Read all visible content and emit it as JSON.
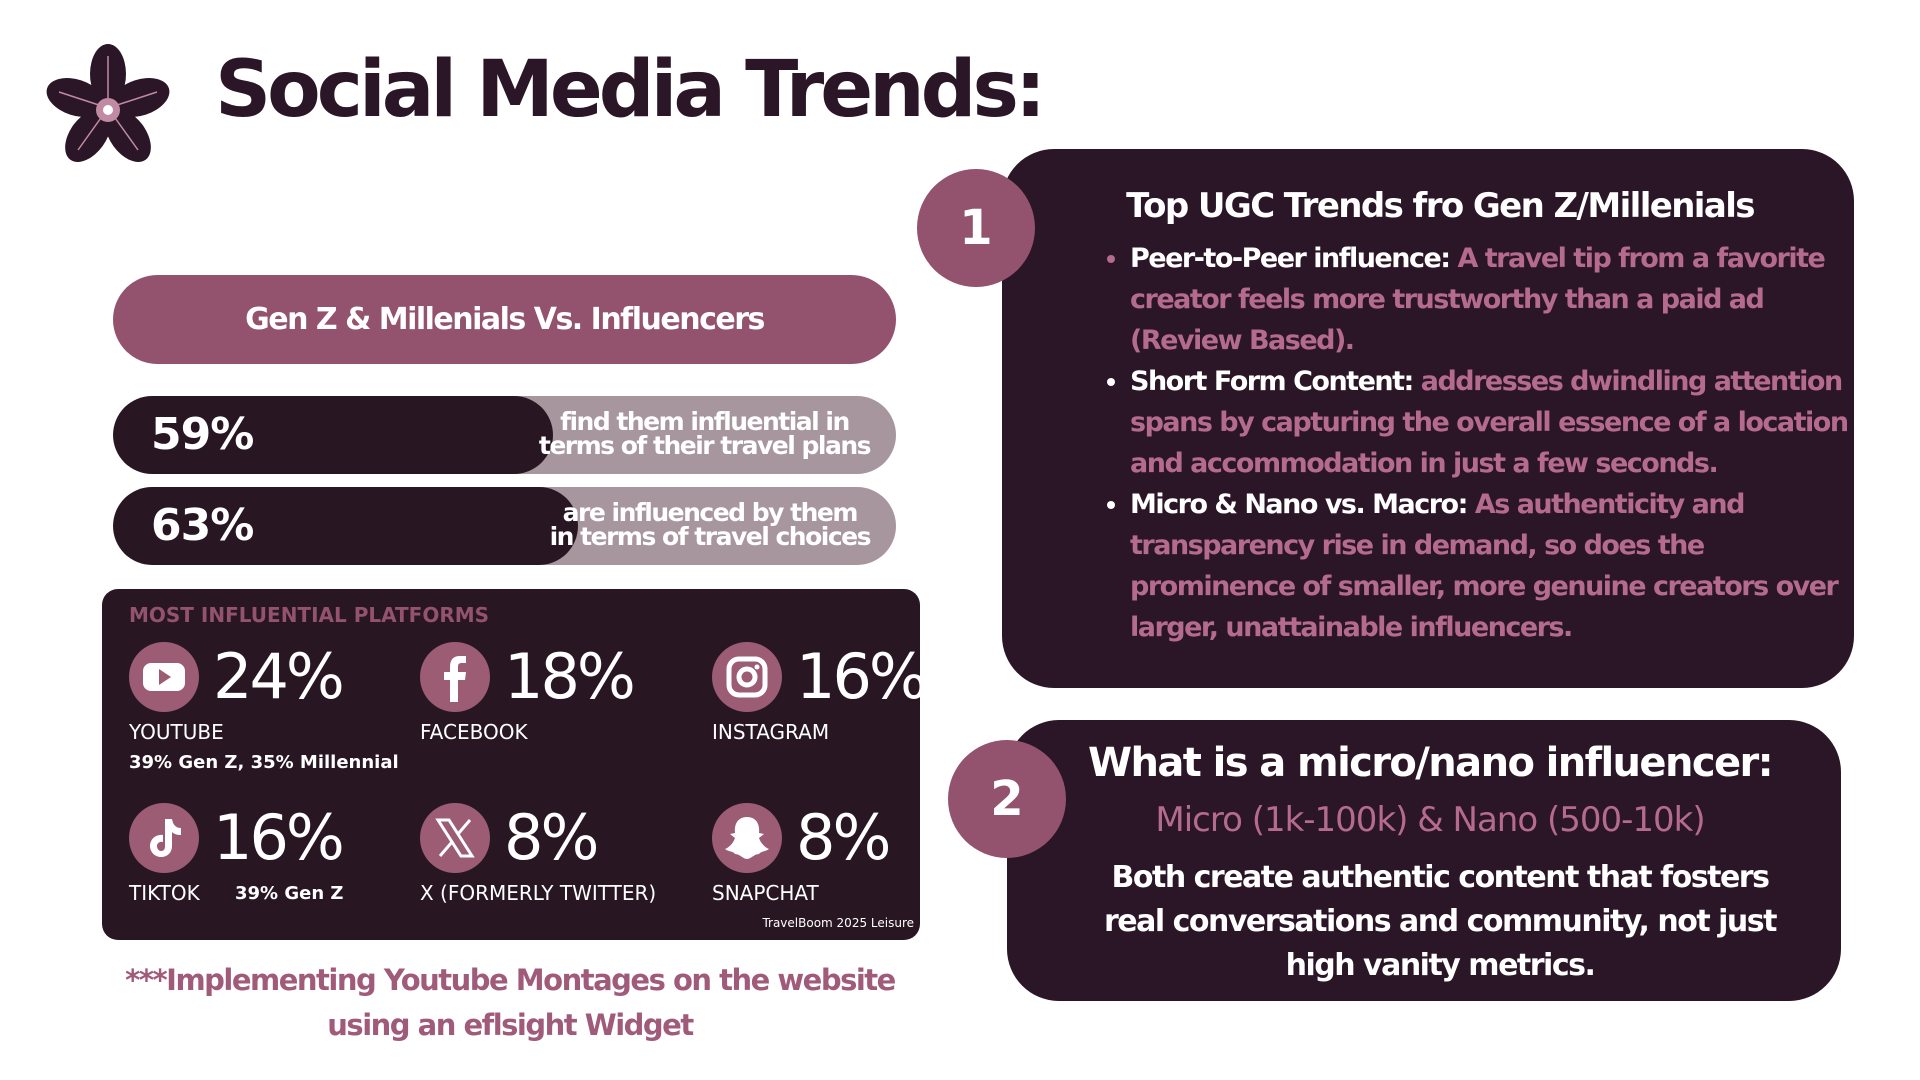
{
  "header": {
    "title": "Social Media Trends:"
  },
  "left": {
    "banner": "Gen Z & Millenials Vs. Influencers",
    "stats": [
      {
        "value": "59%",
        "text": [
          "find them influential in",
          "terms of their travel plans"
        ]
      },
      {
        "value": "63%",
        "text": [
          "are influenced by them",
          "in terms of travel choices"
        ]
      }
    ]
  },
  "platforms": {
    "heading": "MOST INFLUENTIAL PLATFORMS",
    "items": [
      {
        "value": "24%",
        "name": "YOUTUBE",
        "note": "39% Gen Z, 35% Millennial"
      },
      {
        "value": "18%",
        "name": "FACEBOOK"
      },
      {
        "value": "16%",
        "name": "INSTAGRAM"
      },
      {
        "value": "16%",
        "name": "TIKTOK",
        "note": "39% Gen Z"
      },
      {
        "value": "8%",
        "name": "X (FORMERLY TWITTER)"
      },
      {
        "value": "8%",
        "name": "SNAPCHAT"
      }
    ],
    "source": "TravelBoom 2025 Leisure"
  },
  "footnote": [
    "***Implementing Youtube Montages on the website",
    "using an eflsight Widget"
  ],
  "trends": {
    "number": "1",
    "heading": "Top UGC Trends fro Gen Z/Millenials",
    "items": [
      {
        "lead": "Peer-to-Peer influence:",
        "text": "A travel tip from a favorite creator feels more trustworthy than a paid ad (Review Based)."
      },
      {
        "lead": "Short Form Content:",
        "text": "addresses dwindling attention spans by capturing the overall essence of a location and accommodation in just a few seconds."
      },
      {
        "lead": "Micro & Nano vs. Macro:",
        "text": "As authenticity and transparency rise in demand, so does the prominence of smaller, more genuine creators over larger, unattainable influencers."
      }
    ]
  },
  "micro": {
    "number": "2",
    "heading": "What is a micro/nano influencer:",
    "subheading": "Micro (1k-100k) & Nano (500-10k)",
    "body": "Both create authentic content that fosters real conversations and community, not just high vanity metrics."
  }
}
